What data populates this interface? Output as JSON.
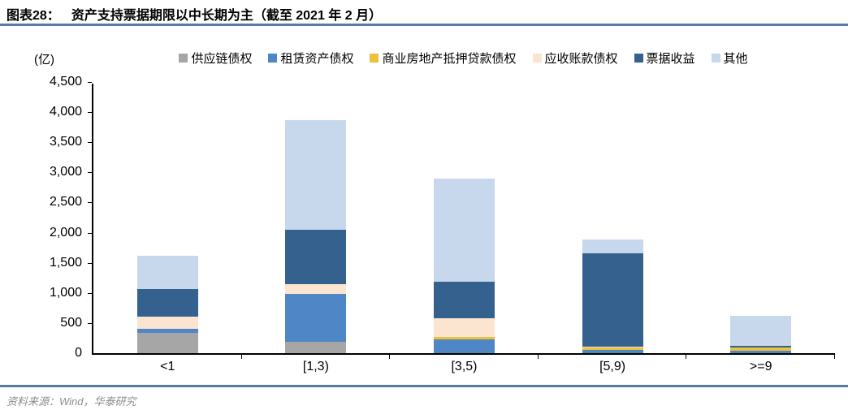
{
  "title": {
    "prefix": "图表28：",
    "text": "资产支持票据期限以中长期为主（截至 2021 年 2 月）"
  },
  "source": "资料来源：Wind，华泰研究",
  "rules": {
    "title_rule_color": "#5a7ba1",
    "bottom_rule_color": "#5a7ba1"
  },
  "chart_data": {
    "type": "bar",
    "stacked": true,
    "title": "资产支持票据期限以中长期为主（截至 2021 年 2 月）",
    "unit_label": "(亿)",
    "xlabel": "",
    "ylabel": "(亿)",
    "categories": [
      "<1",
      "[1,3)",
      "[3,5)",
      "[5,9)",
      ">=9"
    ],
    "series": [
      {
        "name": "供应链债权",
        "color": "#a6a6a6",
        "values": [
          340,
          190,
          0,
          0,
          0
        ]
      },
      {
        "name": "租赁资产债权",
        "color": "#4f86c6",
        "values": [
          60,
          800,
          230,
          60,
          40
        ]
      },
      {
        "name": "商业房地产抵押贷款债权",
        "color": "#edc13a",
        "values": [
          0,
          0,
          45,
          40,
          50
        ]
      },
      {
        "name": "应收账款债权",
        "color": "#fbe5d0",
        "values": [
          200,
          160,
          310,
          10,
          0
        ]
      },
      {
        "name": "票据收益",
        "color": "#35618f",
        "values": [
          460,
          900,
          600,
          1550,
          30
        ]
      },
      {
        "name": "其他",
        "color": "#c7d7ec",
        "values": [
          560,
          1820,
          1715,
          230,
          500
        ]
      }
    ],
    "totals": [
      1620,
      3870,
      2900,
      1890,
      620
    ],
    "ylim": [
      0,
      4500
    ],
    "ytick_step": 500,
    "grid": false,
    "legend_position": "top"
  }
}
